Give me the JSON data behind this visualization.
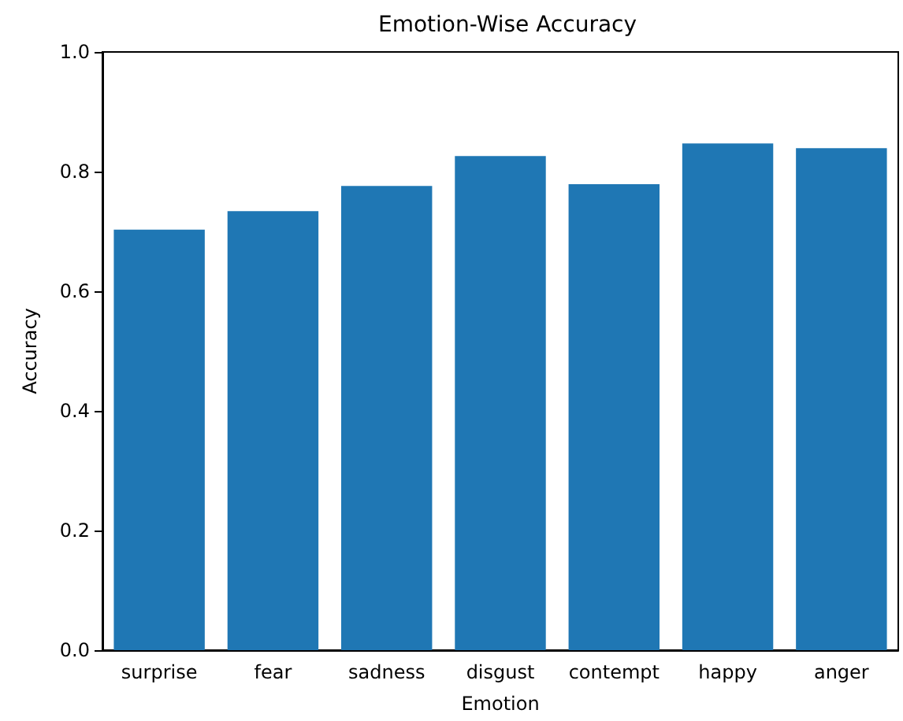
{
  "chart_data": {
    "type": "bar",
    "title": "Emotion-Wise Accuracy",
    "xlabel": "Emotion",
    "ylabel": "Accuracy",
    "categories": [
      "surprise",
      "fear",
      "sadness",
      "disgust",
      "contempt",
      "happy",
      "anger"
    ],
    "values": [
      0.703,
      0.734,
      0.776,
      0.826,
      0.779,
      0.847,
      0.839
    ],
    "color": "#1f77b4",
    "ylim": [
      0,
      1
    ],
    "yticks": [
      {
        "value": 0,
        "label": "0.0"
      },
      {
        "value": 0.2,
        "label": "0.2"
      },
      {
        "value": 0.4,
        "label": "0.4"
      },
      {
        "value": 0.6,
        "label": "0.6"
      },
      {
        "value": 0.8,
        "label": "0.8"
      },
      {
        "value": 1,
        "label": "1.0"
      }
    ],
    "grid": false
  }
}
